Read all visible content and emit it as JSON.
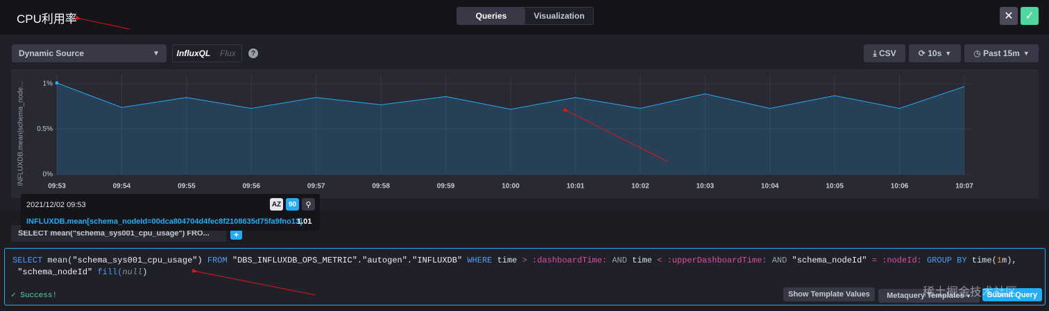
{
  "header": {
    "title": "CPU利用率",
    "tabs": [
      "Queries",
      "Visualization"
    ]
  },
  "toolbar": {
    "source": "Dynamic Source",
    "languages": [
      "InfluxQL",
      "Flux"
    ],
    "buttons": [
      "CSV",
      "10s",
      "Past 15m"
    ]
  },
  "chart_data": {
    "type": "line",
    "y_label": "INFLUXDB.mean|schema_node...",
    "categories": [
      "09:53",
      "09:54",
      "09:55",
      "09:56",
      "09:57",
      "09:58",
      "09:59",
      "10:00",
      "10:01",
      "10:02",
      "10:03",
      "10:04",
      "10:05",
      "10:06",
      "10:07"
    ],
    "series": [
      {
        "name": "INFLUXDB.mean[schema_nodeId=00dca804704d4fec8f2108635d75fa9fno13]",
        "color": "#22adf6",
        "values": [
          1.01,
          0.74,
          0.85,
          0.73,
          0.85,
          0.77,
          0.86,
          0.72,
          0.85,
          0.73,
          0.89,
          0.73,
          0.87,
          0.73,
          0.97
        ]
      }
    ],
    "ylim": [
      0,
      1.1
    ],
    "yticks": [
      {
        "value": 0,
        "label": "0%"
      },
      {
        "value": 0.5,
        "label": "0.5%"
      },
      {
        "value": 1,
        "label": "1%"
      }
    ],
    "grid": true,
    "area": true
  },
  "tooltip": {
    "time": "2021/12/02 09:53"
  },
  "query_tab": {
    "label": "SELECT mean(\"schema_sys001_cpu_usage\") FRO..."
  },
  "editor": {
    "lines": [
      [
        "SELECT",
        "mean(",
        "\"schema_sys001_cpu_usage\")",
        "FROM",
        "\"DBS_INFLUXDB_OPS_METRIC\".\"autogen\".\"INFLUXDB\"",
        "WHERE",
        "time",
        ">",
        ":dashboardTime:",
        "AND",
        "time",
        "<",
        ":upperDashboardTime:",
        "AND",
        "\"schema_nodeId\"",
        "=",
        ":nodeId:",
        "GROUP BY",
        "time(",
        "1",
        "m),"
      ],
      [
        "\"schema_nodeId\"",
        "fill(",
        "null",
        ")"
      ]
    ],
    "status": "Success!",
    "buttons": [
      "Show Template Values",
      "Metaquery Templates",
      "Submit Query"
    ]
  },
  "watermark": "稀土掘金技术社区"
}
